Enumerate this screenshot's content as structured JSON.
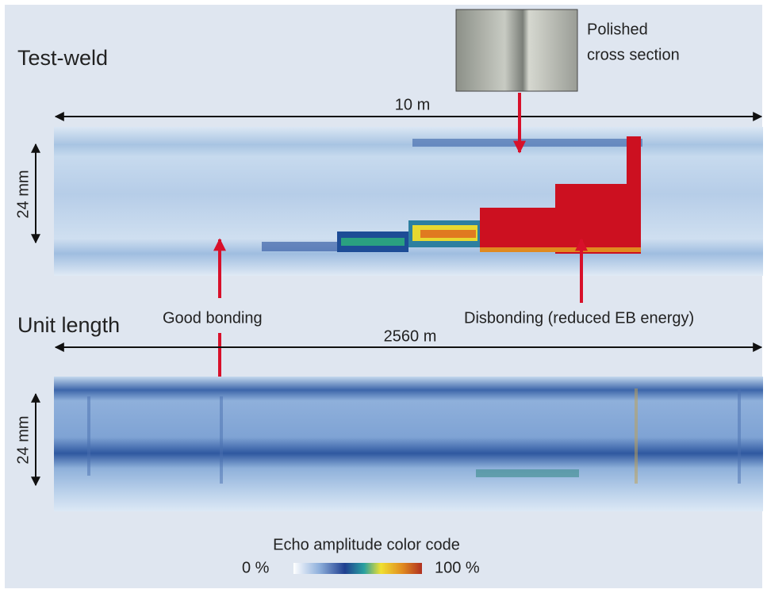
{
  "sections": [
    {
      "title": "Test-weld",
      "length_label": "10 m",
      "height_label": "24 mm"
    },
    {
      "title": "Unit length",
      "length_label": "2560 m",
      "height_label": "24 mm"
    }
  ],
  "photo_caption": [
    "Polished",
    "cross section"
  ],
  "annotations": [
    "Good bonding",
    "Disbonding (reduced EB energy)"
  ],
  "legend": {
    "title": "Echo amplitude color code",
    "min_label": "0 %",
    "max_label": "100 %"
  }
}
